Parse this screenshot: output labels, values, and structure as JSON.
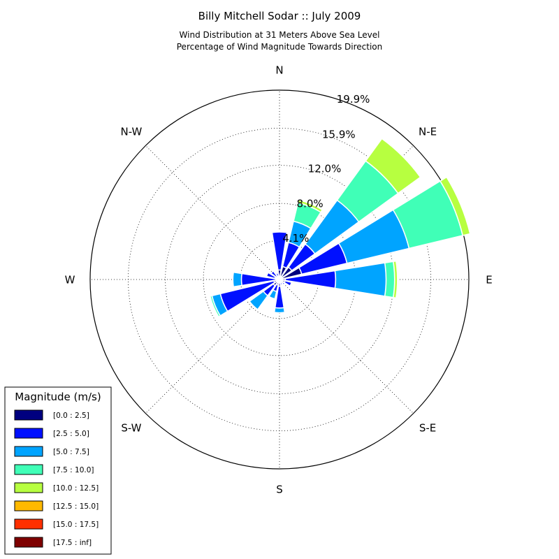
{
  "chart_data": {
    "type": "windrose",
    "title": "Billy Mitchell Sodar :: July 2009",
    "subtitle_lines": [
      "Wind Distribution at 31 Meters Above Sea Level",
      "Percentage of Wind Magnitude Towards Direction"
    ],
    "directions": [
      "N",
      "NNE",
      "NE",
      "ENE",
      "E",
      "ESE",
      "SE",
      "SSE",
      "S",
      "SSW",
      "SW",
      "WSW",
      "W",
      "WNW",
      "NW",
      "NNW"
    ],
    "direction_labels": [
      {
        "label": "N",
        "angle_deg": 0
      },
      {
        "label": "N-E",
        "angle_deg": 45
      },
      {
        "label": "E",
        "angle_deg": 90
      },
      {
        "label": "S-E",
        "angle_deg": 135
      },
      {
        "label": "S",
        "angle_deg": 180
      },
      {
        "label": "S-W",
        "angle_deg": 225
      },
      {
        "label": "W",
        "angle_deg": 270
      },
      {
        "label": "N-W",
        "angle_deg": 315
      }
    ],
    "rmax": 19.9,
    "rings": [
      {
        "value": 4.1,
        "label": "4.1%"
      },
      {
        "value": 8.0,
        "label": "8.0%"
      },
      {
        "value": 12.0,
        "label": "12.0%"
      },
      {
        "value": 15.9,
        "label": "15.9%"
      },
      {
        "value": 19.9,
        "label": "19.9%"
      }
    ],
    "ring_label_angle_deg": 22.5,
    "grid": true,
    "legend": {
      "title": "Magnitude (m/s)",
      "placement": "bottom-left",
      "bins": [
        {
          "label": "[0.0 : 2.5]",
          "color": "#00007f"
        },
        {
          "label": "[2.5 : 5.0]",
          "color": "#0010ff"
        },
        {
          "label": "[5.0 : 7.5]",
          "color": "#00a4ff"
        },
        {
          "label": "[7.5 : 10.0]",
          "color": "#40ffb7"
        },
        {
          "label": "[10.0 : 12.5]",
          "color": "#b7ff40"
        },
        {
          "label": "[12.5 : 15.0]",
          "color": "#ffb900"
        },
        {
          "label": "[15.0 : 17.5]",
          "color": "#ff3000"
        },
        {
          "label": "[17.5 : inf]",
          "color": "#7f0000"
        }
      ]
    },
    "series_cumulative": [
      [
        1.0,
        5.0,
        5.1,
        5.15,
        5.15,
        5.15,
        5.15,
        5.15
      ],
      [
        1.4,
        4.0,
        6.3,
        8.3,
        8.6,
        8.6,
        8.6,
        8.6
      ],
      [
        1.6,
        4.6,
        10.3,
        15.4,
        18.3,
        18.3,
        18.3,
        18.3
      ],
      [
        2.4,
        7.3,
        14.0,
        19.8,
        20.6,
        20.6,
        20.6,
        20.6
      ],
      [
        0.6,
        5.9,
        11.2,
        12.1,
        12.4,
        12.4,
        12.4,
        12.4
      ],
      [
        0.6,
        1.3,
        1.3,
        1.3,
        1.3,
        1.3,
        1.3,
        1.3
      ],
      [
        0.5,
        0.7,
        0.7,
        0.7,
        0.7,
        0.7,
        0.7,
        0.7
      ],
      [
        0.3,
        0.6,
        0.6,
        0.6,
        0.6,
        0.6,
        0.6,
        0.6
      ],
      [
        0.7,
        3.0,
        3.5,
        3.5,
        3.5,
        3.5,
        3.5,
        3.5
      ],
      [
        0.6,
        1.3,
        2.1,
        2.1,
        2.1,
        2.1,
        2.1,
        2.1
      ],
      [
        0.8,
        2.1,
        3.9,
        3.9,
        3.9,
        3.9,
        3.9,
        3.9
      ],
      [
        0.6,
        6.4,
        7.3,
        7.5,
        7.5,
        7.5,
        7.5,
        7.5
      ],
      [
        0.4,
        4.0,
        4.9,
        4.9,
        4.9,
        4.9,
        4.9,
        4.9
      ],
      [
        0.5,
        1.4,
        1.4,
        1.4,
        1.4,
        1.4,
        1.4,
        1.4
      ],
      [
        0.4,
        1.1,
        1.1,
        1.1,
        1.1,
        1.1,
        1.1,
        1.1
      ],
      [
        0.3,
        0.7,
        0.7,
        0.7,
        0.7,
        0.7,
        0.7,
        0.7
      ]
    ]
  }
}
